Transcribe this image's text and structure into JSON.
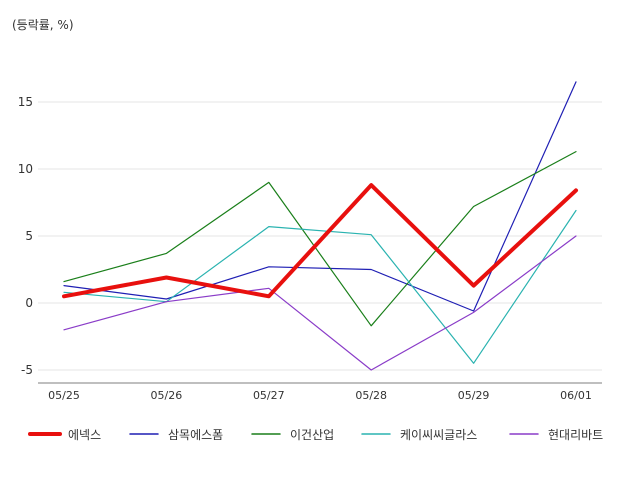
{
  "chart_data": {
    "type": "line",
    "unit_label": "(등락률, %)",
    "categories": [
      "05/25",
      "05/26",
      "05/27",
      "05/28",
      "05/29",
      "06/01"
    ],
    "y_ticks": [
      "-5",
      "0",
      "5",
      "10",
      "15"
    ],
    "ylim": [
      -6,
      19
    ],
    "grid": true,
    "legend_position": "bottom",
    "series": [
      {
        "name": "에넥스",
        "color": "#e8100e",
        "width": 4,
        "values": [
          0.5,
          1.9,
          0.5,
          8.8,
          1.3,
          8.4
        ]
      },
      {
        "name": "삼목에스폼",
        "color": "#1f1fb4",
        "width": 1.2,
        "values": [
          1.3,
          0.3,
          2.7,
          2.5,
          -0.6,
          16.5
        ]
      },
      {
        "name": "이건산업",
        "color": "#1a7f1a",
        "width": 1.2,
        "values": [
          1.6,
          3.7,
          9.0,
          -1.7,
          7.2,
          11.3
        ]
      },
      {
        "name": "케이씨씨글라스",
        "color": "#2ab3b0",
        "width": 1.2,
        "values": [
          0.8,
          0.1,
          5.7,
          5.1,
          -4.5,
          6.9
        ]
      },
      {
        "name": "현대리바트",
        "color": "#8a3cc8",
        "width": 1.2,
        "values": [
          -2.0,
          0.1,
          1.1,
          -5.0,
          -0.7,
          5.0
        ]
      }
    ]
  }
}
